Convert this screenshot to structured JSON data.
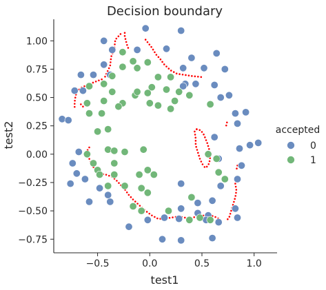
{
  "chart_data": {
    "type": "scatter",
    "title": "Decision boundary",
    "xlabel": "test1",
    "ylabel": "test2",
    "xlim": [
      -0.92,
      1.22
    ],
    "ylim": [
      -0.87,
      1.19
    ],
    "xticks": [
      -0.5,
      0.0,
      0.5,
      1.0
    ],
    "xtick_labels": [
      "−0.5",
      "0.0",
      "0.5",
      "1.0"
    ],
    "yticks": [
      -0.75,
      -0.5,
      -0.25,
      0.0,
      0.25,
      0.5,
      0.75,
      1.0
    ],
    "ytick_labels": [
      "−0.75",
      "−0.50",
      "−0.25",
      "0.00",
      "0.25",
      "0.50",
      "0.75",
      "1.00"
    ],
    "grid": false,
    "legend_title": "accepted",
    "legend_placement": "right",
    "series": [
      {
        "name": "0",
        "color": "#6a8cbf",
        "points": [
          [
            -0.44,
            1.0
          ],
          [
            -0.36,
            0.92
          ],
          [
            -0.12,
            0.92
          ],
          [
            -0.04,
            1.11
          ],
          [
            0.3,
            1.09
          ],
          [
            0.16,
            0.93
          ],
          [
            0.4,
            0.85
          ],
          [
            0.64,
            0.89
          ],
          [
            -0.44,
            0.79
          ],
          [
            -0.66,
            0.7
          ],
          [
            -0.54,
            0.7
          ],
          [
            -0.38,
            0.7
          ],
          [
            0.32,
            0.76
          ],
          [
            0.52,
            0.76
          ],
          [
            0.72,
            0.75
          ],
          [
            -0.72,
            0.56
          ],
          [
            -0.64,
            0.56
          ],
          [
            0.34,
            0.62
          ],
          [
            0.32,
            0.6
          ],
          [
            0.44,
            0.62
          ],
          [
            0.62,
            0.61
          ],
          [
            0.68,
            0.5
          ],
          [
            0.76,
            0.52
          ],
          [
            0.82,
            0.36
          ],
          [
            0.92,
            0.37
          ],
          [
            0.84,
            0.27
          ],
          [
            0.62,
            0.15
          ],
          [
            -0.84,
            0.31
          ],
          [
            -0.78,
            0.3
          ],
          [
            0.96,
            0.08
          ],
          [
            1.04,
            0.1
          ],
          [
            0.86,
            0.05
          ],
          [
            -0.68,
            0.02
          ],
          [
            -0.74,
            -0.08
          ],
          [
            0.66,
            -0.04
          ],
          [
            0.88,
            -0.1
          ],
          [
            0.84,
            -0.22
          ],
          [
            -0.7,
            -0.17
          ],
          [
            -0.62,
            -0.22
          ],
          [
            -0.76,
            -0.26
          ],
          [
            0.3,
            -0.26
          ],
          [
            -0.48,
            -0.3
          ],
          [
            0.68,
            -0.28
          ],
          [
            -0.58,
            -0.42
          ],
          [
            -0.38,
            -0.42
          ],
          [
            0.6,
            -0.41
          ],
          [
            0.46,
            -0.43
          ],
          [
            0.3,
            -0.48
          ],
          [
            -0.4,
            -0.36
          ],
          [
            0.82,
            -0.48
          ],
          [
            0.14,
            -0.56
          ],
          [
            0.46,
            -0.52
          ],
          [
            0.56,
            -0.54
          ],
          [
            -0.02,
            -0.58
          ],
          [
            0.28,
            -0.57
          ],
          [
            0.54,
            -0.58
          ],
          [
            0.84,
            -0.56
          ],
          [
            -0.2,
            -0.64
          ],
          [
            0.12,
            -0.75
          ],
          [
            0.3,
            -0.76
          ],
          [
            0.6,
            -0.74
          ],
          [
            0.66,
            -0.6
          ]
        ]
      },
      {
        "name": "1",
        "color": "#72b779",
        "points": [
          [
            -0.26,
            0.9
          ],
          [
            -0.26,
            0.77
          ],
          [
            -0.16,
            0.82
          ],
          [
            -0.12,
            0.76
          ],
          [
            -0.02,
            0.81
          ],
          [
            0.08,
            0.68
          ],
          [
            -0.36,
            0.69
          ],
          [
            0.2,
            0.68
          ],
          [
            0.02,
            0.59
          ],
          [
            -0.44,
            0.62
          ],
          [
            -0.58,
            0.6
          ],
          [
            -0.36,
            0.55
          ],
          [
            -0.14,
            0.52
          ],
          [
            -0.12,
            0.55
          ],
          [
            -0.02,
            0.54
          ],
          [
            0.16,
            0.57
          ],
          [
            0.28,
            0.55
          ],
          [
            0.24,
            0.47
          ],
          [
            -0.26,
            0.45
          ],
          [
            0.38,
            0.52
          ],
          [
            0.58,
            0.44
          ],
          [
            -0.6,
            0.45
          ],
          [
            -0.44,
            0.47
          ],
          [
            0.2,
            0.4
          ],
          [
            -0.3,
            0.42
          ],
          [
            0.08,
            0.43
          ],
          [
            -0.46,
            0.36
          ],
          [
            -0.58,
            0.36
          ],
          [
            0.0,
            0.45
          ],
          [
            -0.5,
            0.2
          ],
          [
            -0.4,
            0.22
          ],
          [
            -0.06,
            0.04
          ],
          [
            -0.4,
            0.04
          ],
          [
            -0.34,
            0.03
          ],
          [
            -0.24,
            0.02
          ],
          [
            -0.6,
            0.0
          ],
          [
            0.56,
            0.0
          ],
          [
            -0.54,
            -0.08
          ],
          [
            -0.34,
            -0.08
          ],
          [
            0.64,
            -0.04
          ],
          [
            -0.5,
            -0.14
          ],
          [
            -0.48,
            -0.18
          ],
          [
            -0.34,
            -0.18
          ],
          [
            -0.02,
            -0.14
          ],
          [
            0.04,
            -0.18
          ],
          [
            -0.1,
            -0.18
          ],
          [
            0.66,
            -0.16
          ],
          [
            0.72,
            -0.22
          ],
          [
            -0.4,
            -0.28
          ],
          [
            -0.24,
            -0.28
          ],
          [
            -0.08,
            -0.3
          ],
          [
            -0.02,
            -0.34
          ],
          [
            0.4,
            -0.38
          ],
          [
            -0.16,
            -0.46
          ],
          [
            -0.08,
            -0.5
          ],
          [
            0.18,
            -0.5
          ],
          [
            0.58,
            -0.58
          ],
          [
            0.38,
            -0.58
          ],
          [
            0.48,
            -0.56
          ]
        ]
      }
    ],
    "boundary_color": "#ff0000",
    "boundary_segments": [
      [
        [
          -0.28,
          1.06
        ],
        [
          -0.33,
          1.01
        ],
        [
          -0.34,
          0.93
        ],
        [
          -0.37,
          0.86
        ],
        [
          -0.38,
          0.78
        ],
        [
          -0.42,
          0.7
        ],
        [
          -0.44,
          0.66
        ]
      ],
      [
        [
          -0.24,
          1.07
        ],
        [
          -0.24,
          1.04
        ],
        [
          -0.22,
          0.97
        ],
        [
          -0.2,
          0.92
        ]
      ],
      [
        [
          -0.04,
          1.01
        ],
        [
          0.02,
          0.94
        ],
        [
          0.06,
          0.88
        ],
        [
          0.1,
          0.84
        ],
        [
          0.14,
          0.79
        ],
        [
          0.2,
          0.74
        ],
        [
          0.26,
          0.71
        ],
        [
          0.33,
          0.7
        ],
        [
          0.4,
          0.69
        ],
        [
          0.5,
          0.68
        ]
      ],
      [
        [
          -0.46,
          0.66
        ],
        [
          -0.52,
          0.64
        ],
        [
          -0.6,
          0.61
        ],
        [
          -0.65,
          0.59
        ],
        [
          -0.69,
          0.56
        ],
        [
          -0.71,
          0.52
        ],
        [
          -0.72,
          0.46
        ],
        [
          -0.72,
          0.4
        ]
      ],
      [
        [
          0.45,
          0.22
        ],
        [
          0.43,
          0.2
        ],
        [
          0.44,
          0.14
        ],
        [
          0.44,
          0.08
        ],
        [
          0.46,
          0.02
        ],
        [
          0.48,
          -0.04
        ],
        [
          0.5,
          -0.08
        ],
        [
          0.52,
          -0.11
        ]
      ],
      [
        [
          0.45,
          0.22
        ],
        [
          0.49,
          0.21
        ],
        [
          0.52,
          0.17
        ],
        [
          0.55,
          0.1
        ],
        [
          0.57,
          0.04
        ],
        [
          0.58,
          -0.02
        ],
        [
          0.57,
          -0.08
        ],
        [
          0.54,
          -0.12
        ],
        [
          0.52,
          -0.11
        ]
      ],
      [
        [
          -0.58,
          0.06
        ],
        [
          -0.6,
          0.03
        ],
        [
          -0.58,
          -0.04
        ],
        [
          -0.55,
          -0.1
        ],
        [
          -0.52,
          -0.14
        ],
        [
          -0.48,
          -0.17
        ],
        [
          -0.42,
          -0.18
        ],
        [
          -0.36,
          -0.2
        ],
        [
          -0.32,
          -0.23
        ],
        [
          -0.28,
          -0.27
        ],
        [
          -0.24,
          -0.31
        ],
        [
          -0.2,
          -0.36
        ],
        [
          -0.16,
          -0.4
        ],
        [
          -0.1,
          -0.45
        ],
        [
          -0.04,
          -0.5
        ],
        [
          0.02,
          -0.54
        ],
        [
          0.08,
          -0.57
        ],
        [
          0.14,
          -0.57
        ],
        [
          0.2,
          -0.56
        ],
        [
          0.28,
          -0.55
        ],
        [
          0.34,
          -0.56
        ],
        [
          0.4,
          -0.56
        ],
        [
          0.46,
          -0.55
        ],
        [
          0.52,
          -0.54
        ],
        [
          0.58,
          -0.54
        ],
        [
          0.62,
          -0.55
        ],
        [
          0.66,
          -0.57
        ]
      ],
      [
        [
          0.82,
          -0.26
        ],
        [
          0.83,
          -0.32
        ],
        [
          0.82,
          -0.38
        ],
        [
          0.8,
          -0.44
        ],
        [
          0.78,
          -0.5
        ],
        [
          0.76,
          -0.56
        ],
        [
          0.74,
          -0.58
        ]
      ],
      [
        [
          0.84,
          -0.1
        ],
        [
          0.83,
          -0.14
        ]
      ],
      [
        [
          0.74,
          0.28
        ],
        [
          0.73,
          0.24
        ]
      ],
      [
        [
          -0.64,
          0.42
        ],
        [
          -0.68,
          0.46
        ]
      ]
    ]
  }
}
